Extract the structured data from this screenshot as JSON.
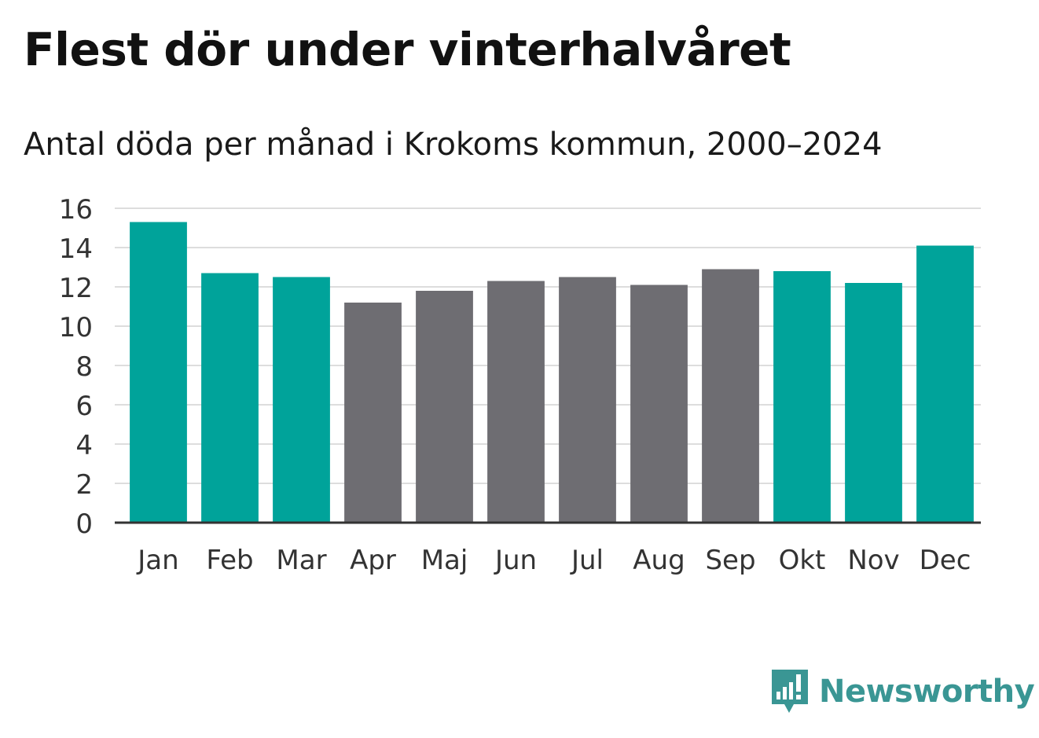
{
  "title": "Flest dör under vinterhalvåret",
  "subtitle": "Antal döda per månad i Krokoms kommun, 2000–2024",
  "brand": {
    "name": "Newsworthy",
    "color": "#3a9694",
    "icon": "newsworthy-logo-icon"
  },
  "colors": {
    "winter": "#00a39a",
    "summer": "#6e6d72",
    "grid": "#dddddd",
    "axis": "#333333",
    "tick_text": "#333333"
  },
  "chart_data": {
    "type": "bar",
    "title": "Flest dör under vinterhalvåret",
    "subtitle": "Antal döda per månad i Krokoms kommun, 2000–2024",
    "xlabel": "",
    "ylabel": "",
    "categories": [
      "Jan",
      "Feb",
      "Mar",
      "Apr",
      "Maj",
      "Jun",
      "Jul",
      "Aug",
      "Sep",
      "Okt",
      "Nov",
      "Dec"
    ],
    "values": [
      15.3,
      12.7,
      12.5,
      11.2,
      11.8,
      12.3,
      12.5,
      12.1,
      12.9,
      12.8,
      12.2,
      14.1
    ],
    "groups": [
      "winter",
      "winter",
      "winter",
      "summer",
      "summer",
      "summer",
      "summer",
      "summer",
      "summer",
      "winter",
      "winter",
      "winter"
    ],
    "ylim": [
      0,
      16
    ],
    "yticks": [
      0,
      2,
      4,
      6,
      8,
      10,
      12,
      14,
      16
    ],
    "grid": true
  }
}
